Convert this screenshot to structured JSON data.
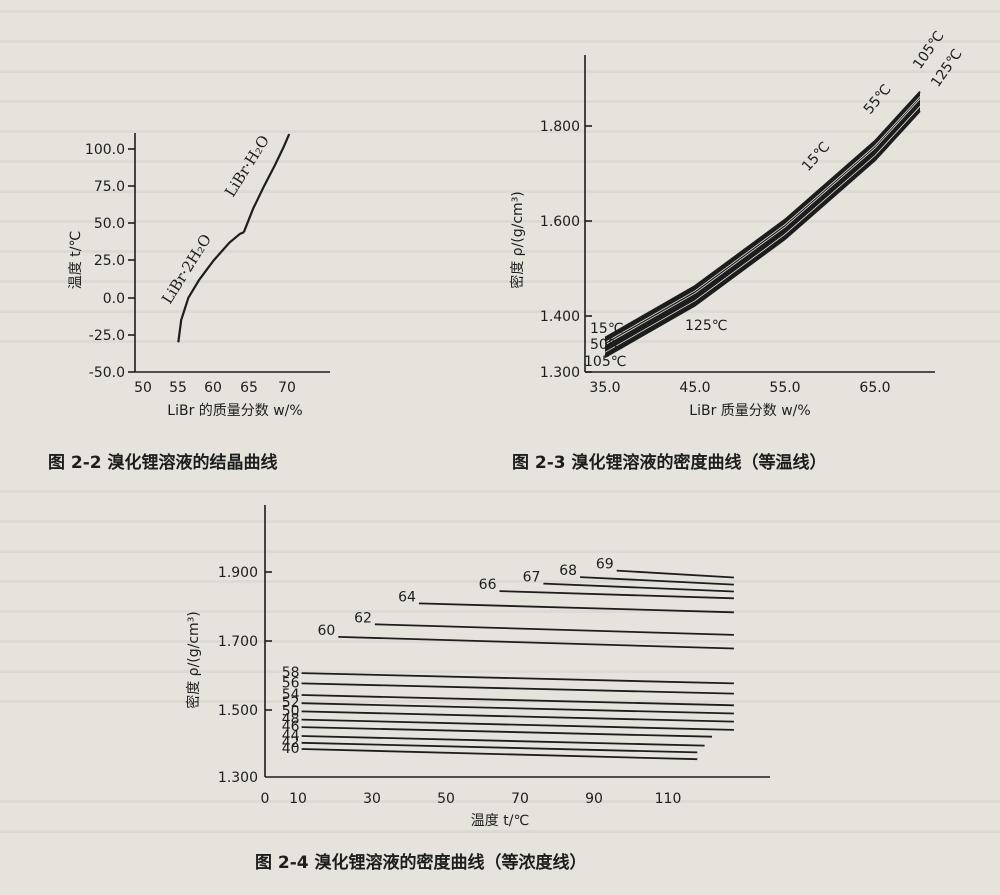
{
  "figures": {
    "fig22": {
      "caption": "图 2-2    溴化锂溶液的结晶曲线"
    },
    "fig23": {
      "caption": "图 2-3    溴化锂溶液的密度曲线（等温线）"
    },
    "fig24": {
      "caption": "图 2-4    溴化锂溶液的密度曲线（等浓度线）"
    }
  },
  "chart_data": [
    {
      "type": "line",
      "xlabel": "LiBr 的质量分数 w/%",
      "ylabel": "温度 t/℃",
      "xlim": [
        50,
        72
      ],
      "ylim": [
        -50,
        120
      ],
      "xticks": [
        50,
        55,
        60,
        65,
        70
      ],
      "yticks": [
        "100.0",
        "75.0",
        "50.0",
        "25.0",
        "0.0",
        "-25.0",
        "-50.0"
      ],
      "ytick_values": [
        100,
        75,
        50,
        25,
        0,
        -25,
        -50
      ],
      "series": [
        {
          "name": "LiBr·2H2O",
          "x": [
            54.9,
            55.3,
            56.3,
            57.8,
            59.8,
            62.0,
            63.5,
            64.0
          ],
          "y": [
            -30,
            -15,
            0,
            12,
            25,
            37,
            43,
            44
          ]
        },
        {
          "name": "LiBr·H2O",
          "x": [
            64.0,
            65.3,
            66.8,
            68.3,
            69.5,
            70.3
          ],
          "y": [
            44,
            60,
            75,
            89,
            101,
            110
          ]
        }
      ],
      "annotations": [
        {
          "text": "LiBr·2H₂O"
        },
        {
          "text": "LiBr·H₂O"
        }
      ]
    },
    {
      "type": "line",
      "xlabel": "LiBr 质量分数 w/%",
      "ylabel": "密度 ρ/(g/cm³)",
      "xlim": [
        35,
        72
      ],
      "ylim": [
        1.3,
        1.9
      ],
      "xticks": [
        "35.0",
        "45.0",
        "55.0",
        "65.0"
      ],
      "xtick_values": [
        35,
        45,
        55,
        65
      ],
      "yticks": [
        "1.800",
        "1.600",
        "1.400",
        "1.300"
      ],
      "ytick_values": [
        1.8,
        1.6,
        1.4,
        1.3
      ],
      "series": [
        {
          "name": "15℃",
          "x": [
            35,
            45,
            55,
            65,
            70
          ],
          "y": [
            1.37,
            1.475,
            1.61,
            1.77,
            1.87
          ]
        },
        {
          "name": "50℃",
          "x": [
            35,
            45,
            55,
            65,
            70
          ],
          "y": [
            1.36,
            1.465,
            1.6,
            1.76,
            1.86
          ]
        },
        {
          "name": "55℃",
          "x": [
            35,
            45,
            55,
            65,
            70
          ],
          "y": [
            1.355,
            1.46,
            1.595,
            1.755,
            1.855
          ]
        },
        {
          "name": "105℃",
          "x": [
            35,
            45,
            55,
            65,
            70
          ],
          "y": [
            1.34,
            1.445,
            1.58,
            1.74,
            1.84
          ]
        },
        {
          "name": "125℃",
          "x": [
            35,
            45,
            55,
            65,
            70
          ],
          "y": [
            1.33,
            1.435,
            1.57,
            1.73,
            1.83
          ]
        }
      ],
      "annotations": [
        {
          "text": "15℃"
        },
        {
          "text": "50℃"
        },
        {
          "text": "105℃"
        },
        {
          "text": "15℃"
        },
        {
          "text": "55℃"
        },
        {
          "text": "105℃"
        },
        {
          "text": "125℃"
        },
        {
          "text": "125℃"
        }
      ]
    },
    {
      "type": "line",
      "xlabel": "温度 t/℃",
      "ylabel": "密度 ρ/(g/cm³)",
      "xlim": [
        0,
        135
      ],
      "ylim": [
        1.3,
        1.95
      ],
      "xticks": [
        0,
        10,
        30,
        50,
        70,
        90,
        110
      ],
      "yticks": [
        "1.900",
        "1.700",
        "1.500",
        "1.300"
      ],
      "ytick_values": [
        1.9,
        1.7,
        1.5,
        1.3
      ],
      "series": [
        {
          "name": "40",
          "x": [
            10,
            118
          ],
          "y": [
            1.382,
            1.352
          ]
        },
        {
          "name": "42",
          "x": [
            10,
            118
          ],
          "y": [
            1.4,
            1.372
          ]
        },
        {
          "name": "44",
          "x": [
            10,
            120
          ],
          "y": [
            1.42,
            1.392
          ]
        },
        {
          "name": "46",
          "x": [
            10,
            122
          ],
          "y": [
            1.446,
            1.418
          ]
        },
        {
          "name": "48",
          "x": [
            10,
            128
          ],
          "y": [
            1.468,
            1.438
          ]
        },
        {
          "name": "50",
          "x": [
            10,
            128
          ],
          "y": [
            1.492,
            1.462
          ]
        },
        {
          "name": "52",
          "x": [
            10,
            128
          ],
          "y": [
            1.516,
            1.486
          ]
        },
        {
          "name": "54",
          "x": [
            10,
            128
          ],
          "y": [
            1.54,
            1.51
          ]
        },
        {
          "name": "56",
          "x": [
            10,
            128
          ],
          "y": [
            1.574,
            1.544
          ]
        },
        {
          "name": "58",
          "x": [
            10,
            128
          ],
          "y": [
            1.604,
            1.574
          ]
        },
        {
          "name": "60",
          "x": [
            20,
            128
          ],
          "y": [
            1.71,
            1.676
          ]
        },
        {
          "name": "62",
          "x": [
            30,
            128
          ],
          "y": [
            1.747,
            1.716
          ]
        },
        {
          "name": "64",
          "x": [
            42,
            128
          ],
          "y": [
            1.808,
            1.782
          ]
        },
        {
          "name": "66",
          "x": [
            64,
            128
          ],
          "y": [
            1.844,
            1.823
          ]
        },
        {
          "name": "67",
          "x": [
            76,
            128
          ],
          "y": [
            1.866,
            1.843
          ]
        },
        {
          "name": "68",
          "x": [
            86,
            128
          ],
          "y": [
            1.885,
            1.863
          ]
        },
        {
          "name": "69",
          "x": [
            96,
            128
          ],
          "y": [
            1.904,
            1.884
          ]
        }
      ]
    }
  ]
}
